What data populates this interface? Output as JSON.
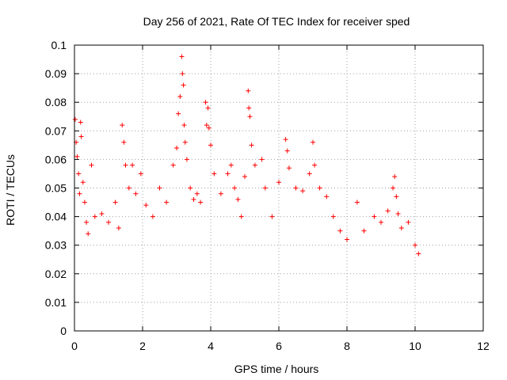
{
  "chart_data": {
    "type": "scatter",
    "title": "Day 256 of 2021, Rate Of TEC Index for receiver sped",
    "xlabel": "GPS time / hours",
    "ylabel": "ROTI / TECUs",
    "xlim": [
      0,
      12
    ],
    "ylim": [
      0,
      0.1
    ],
    "x_ticks": [
      "0",
      "2",
      "4",
      "6",
      "8",
      "10",
      "12"
    ],
    "y_ticks": [
      "0",
      "0.01",
      "0.02",
      "0.03",
      "0.04",
      "0.05",
      "0.06",
      "0.07",
      "0.08",
      "0.09",
      "0.1"
    ],
    "grid": true,
    "marker": "+",
    "color": "#ff0000",
    "series": [
      {
        "points": [
          [
            0.02,
            0.074
          ],
          [
            0.05,
            0.066
          ],
          [
            0.08,
            0.061
          ],
          [
            0.12,
            0.055
          ],
          [
            0.15,
            0.048
          ],
          [
            0.18,
            0.073
          ],
          [
            0.2,
            0.068
          ],
          [
            0.25,
            0.052
          ],
          [
            0.3,
            0.045
          ],
          [
            0.35,
            0.038
          ],
          [
            0.4,
            0.034
          ],
          [
            0.5,
            0.058
          ],
          [
            0.6,
            0.04
          ],
          [
            0.8,
            0.041
          ],
          [
            1.0,
            0.038
          ],
          [
            1.2,
            0.045
          ],
          [
            1.3,
            0.036
          ],
          [
            1.4,
            0.072
          ],
          [
            1.45,
            0.066
          ],
          [
            1.5,
            0.058
          ],
          [
            1.6,
            0.05
          ],
          [
            1.7,
            0.058
          ],
          [
            1.8,
            0.048
          ],
          [
            1.95,
            0.055
          ],
          [
            2.1,
            0.044
          ],
          [
            2.3,
            0.04
          ],
          [
            2.5,
            0.05
          ],
          [
            2.7,
            0.045
          ],
          [
            2.9,
            0.058
          ],
          [
            3.0,
            0.064
          ],
          [
            3.05,
            0.076
          ],
          [
            3.1,
            0.082
          ],
          [
            3.15,
            0.096
          ],
          [
            3.17,
            0.09
          ],
          [
            3.2,
            0.086
          ],
          [
            3.22,
            0.072
          ],
          [
            3.25,
            0.066
          ],
          [
            3.3,
            0.06
          ],
          [
            3.4,
            0.05
          ],
          [
            3.5,
            0.046
          ],
          [
            3.6,
            0.048
          ],
          [
            3.7,
            0.045
          ],
          [
            3.85,
            0.08
          ],
          [
            3.88,
            0.072
          ],
          [
            3.92,
            0.078
          ],
          [
            3.95,
            0.071
          ],
          [
            4.0,
            0.065
          ],
          [
            4.1,
            0.055
          ],
          [
            4.3,
            0.048
          ],
          [
            4.5,
            0.055
          ],
          [
            4.6,
            0.058
          ],
          [
            4.7,
            0.05
          ],
          [
            4.8,
            0.046
          ],
          [
            4.9,
            0.04
          ],
          [
            5.0,
            0.054
          ],
          [
            5.1,
            0.084
          ],
          [
            5.12,
            0.078
          ],
          [
            5.15,
            0.075
          ],
          [
            5.2,
            0.065
          ],
          [
            5.3,
            0.058
          ],
          [
            5.5,
            0.06
          ],
          [
            5.6,
            0.05
          ],
          [
            5.8,
            0.04
          ],
          [
            6.0,
            0.052
          ],
          [
            6.2,
            0.067
          ],
          [
            6.25,
            0.063
          ],
          [
            6.3,
            0.057
          ],
          [
            6.5,
            0.05
          ],
          [
            6.7,
            0.049
          ],
          [
            6.9,
            0.055
          ],
          [
            7.0,
            0.066
          ],
          [
            7.05,
            0.058
          ],
          [
            7.2,
            0.05
          ],
          [
            7.4,
            0.047
          ],
          [
            7.6,
            0.04
          ],
          [
            7.8,
            0.035
          ],
          [
            8.0,
            0.032
          ],
          [
            8.3,
            0.045
          ],
          [
            8.5,
            0.035
          ],
          [
            8.8,
            0.04
          ],
          [
            9.0,
            0.038
          ],
          [
            9.2,
            0.042
          ],
          [
            9.35,
            0.05
          ],
          [
            9.4,
            0.054
          ],
          [
            9.45,
            0.047
          ],
          [
            9.5,
            0.041
          ],
          [
            9.6,
            0.036
          ],
          [
            9.8,
            0.038
          ],
          [
            10.0,
            0.03
          ],
          [
            10.1,
            0.027
          ]
        ]
      }
    ]
  }
}
